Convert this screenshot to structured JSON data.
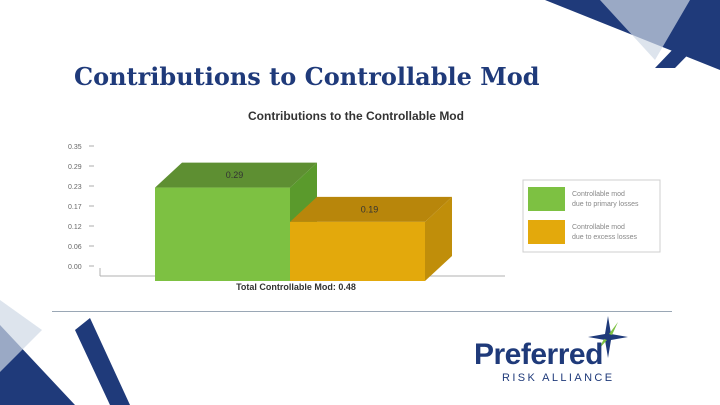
{
  "slide": {
    "title": "Contributions to Controllable Mod"
  },
  "colors": {
    "title": "#1f3a7a",
    "green": "#7dc142",
    "green_top": "#5e8f32",
    "gold": "#e3a90c",
    "gold_top": "#b8860b",
    "decor_blue": "#1f3a7a",
    "decor_light": "#cfd8e6"
  },
  "chart_data": {
    "type": "bar",
    "title": "Contributions to the Controllable Mod",
    "subtitle": "Total Controllable Mod: 0.48",
    "ylim": [
      0,
      0.35
    ],
    "yticks": [
      "0.35",
      "0.29",
      "0.23",
      "0.17",
      "0.12",
      "0.06",
      "0.00"
    ],
    "series": [
      {
        "name": "Controllable mod due to primary losses",
        "values": [
          0.29
        ],
        "value_label": "0.29",
        "color": "#7dc142"
      },
      {
        "name": "Controllable mod due to excess losses",
        "values": [
          0.19
        ],
        "value_label": "0.19",
        "color": "#e3a90c"
      }
    ],
    "legend_position": "right",
    "grid": false
  },
  "logo": {
    "name": "Preferred",
    "tagline": "RISK ALLIANCE"
  }
}
